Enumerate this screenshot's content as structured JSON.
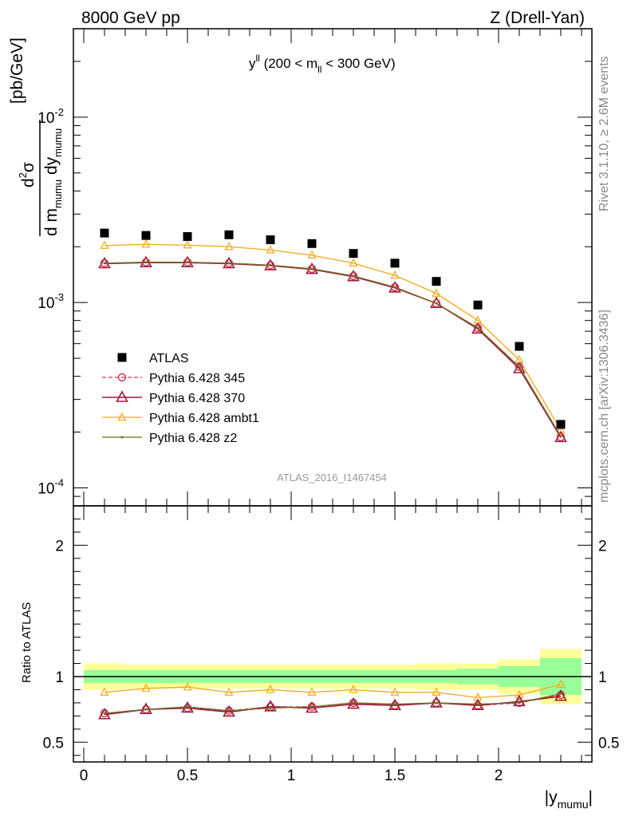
{
  "header": {
    "left": "8000 GeV pp",
    "right": "Z (Drell-Yan)"
  },
  "side_labels": {
    "rivet": "Rivet 3.1.10, ≥ 2.6M events",
    "mcplots": "mcplots.cern.ch [arXiv:1306.3436]"
  },
  "colors": {
    "atlas": "#000000",
    "p345": "#d03050",
    "p370": "#a01838",
    "ambt1": "#f0a818",
    "z2": "#6b7020",
    "band_inner": "#99ff99",
    "band_outer": "#ffff99"
  },
  "chart_data": [
    {
      "type": "line",
      "panel": "main",
      "title": "y^ll (200 < m_ll < 300 GeV)",
      "title_parts": {
        "main": "y",
        "sup": "ll",
        "pre": " (200 < m",
        "sub": "ll",
        "post": " < 300 GeV)"
      },
      "ylabel": "d²σ / d m_mumu dy_mumu [pb/GeV]",
      "ylabel_parts": {
        "num_d": "d",
        "num_sup": "2",
        "num_sigma": "σ",
        "den_d1": "d m",
        "den_sub1": "mumu",
        "den_d2": " dy",
        "den_sub2": "mumu",
        "unit": "[pb/GeV]"
      },
      "yscale": "log",
      "ylim": [
        8e-05,
        0.03
      ],
      "xlim": [
        -0.05,
        2.45
      ],
      "y_ticks": [
        {
          "base": "10",
          "exp": "-4",
          "value": 0.0001
        },
        {
          "base": "10",
          "exp": "-3",
          "value": 0.001
        },
        {
          "base": "10",
          "exp": "-2",
          "value": 0.01
        }
      ],
      "watermark": "ATLAS_2016_I1467454",
      "legend_position": "bottom-left",
      "x": [
        0.1,
        0.3,
        0.5,
        0.7,
        0.9,
        1.1,
        1.3,
        1.5,
        1.7,
        1.9,
        2.1,
        2.3
      ],
      "series": [
        {
          "name": "ATLAS",
          "marker": "square",
          "values": [
            0.00237,
            0.0023,
            0.00227,
            0.00232,
            0.00218,
            0.00208,
            0.00184,
            0.00163,
            0.0013,
            0.00097,
            0.00058,
            0.00022
          ]
        },
        {
          "name": "Pythia 6.428 345",
          "marker": "circle",
          "dash": true,
          "values": [
            0.00163,
            0.00165,
            0.00165,
            0.00163,
            0.00159,
            0.00152,
            0.00139,
            0.00121,
            0.00099,
            0.00073,
            0.00045,
            0.000188
          ]
        },
        {
          "name": "Pythia 6.428 370",
          "marker": "triangle-large",
          "values": [
            0.00162,
            0.00164,
            0.00164,
            0.00162,
            0.00158,
            0.00151,
            0.00138,
            0.0012,
            0.00099,
            0.00072,
            0.00044,
            0.000187
          ]
        },
        {
          "name": "Pythia 6.428 ambt1",
          "marker": "triangle",
          "values": [
            0.00203,
            0.00206,
            0.00204,
            0.002,
            0.00192,
            0.0018,
            0.00163,
            0.0014,
            0.00112,
            0.0008,
            0.00049,
            0.000205
          ]
        },
        {
          "name": "Pythia 6.428 z2",
          "marker": "dot",
          "values": [
            0.00163,
            0.00165,
            0.00165,
            0.00163,
            0.00159,
            0.00152,
            0.00139,
            0.00121,
            0.00099,
            0.00073,
            0.00045,
            0.00019
          ]
        }
      ]
    },
    {
      "type": "line",
      "panel": "ratio",
      "ylabel": "Ratio to ATLAS",
      "xlabel": "|y_mumu|",
      "xlabel_parts": {
        "pre": "|y",
        "sub": "mumu",
        "post": "|"
      },
      "ylim": [
        0.35,
        2.3
      ],
      "xlim": [
        -0.05,
        2.45
      ],
      "y_ticks": [
        "0.5",
        "1",
        "2"
      ],
      "x_ticks": [
        "0",
        "0.5",
        "1",
        "1.5",
        "2"
      ],
      "x": [
        0.1,
        0.3,
        0.5,
        0.7,
        0.9,
        1.1,
        1.3,
        1.5,
        1.7,
        1.9,
        2.1,
        2.3
      ],
      "band_edges": [
        0.0,
        0.2,
        0.4,
        0.6,
        0.8,
        1.0,
        1.2,
        1.4,
        1.6,
        1.8,
        2.0,
        2.2,
        2.4
      ],
      "band_inner": [
        0.05,
        0.05,
        0.05,
        0.05,
        0.05,
        0.05,
        0.05,
        0.05,
        0.05,
        0.06,
        0.08,
        0.14
      ],
      "band_outer": [
        0.1,
        0.09,
        0.09,
        0.09,
        0.09,
        0.09,
        0.09,
        0.09,
        0.1,
        0.1,
        0.13,
        0.21
      ],
      "series": [
        {
          "name": "Pythia 6.428 345",
          "values": [
            0.72,
            0.75,
            0.76,
            0.74,
            0.77,
            0.77,
            0.8,
            0.78,
            0.8,
            0.78,
            0.8,
            0.86
          ]
        },
        {
          "name": "Pythia 6.428 370",
          "values": [
            0.71,
            0.75,
            0.76,
            0.73,
            0.77,
            0.76,
            0.79,
            0.78,
            0.8,
            0.78,
            0.81,
            0.85
          ]
        },
        {
          "name": "Pythia 6.428 ambt1",
          "values": [
            0.88,
            0.91,
            0.92,
            0.88,
            0.9,
            0.88,
            0.9,
            0.88,
            0.88,
            0.84,
            0.86,
            0.94
          ]
        },
        {
          "name": "Pythia 6.428 z2",
          "values": [
            0.72,
            0.75,
            0.77,
            0.74,
            0.76,
            0.77,
            0.8,
            0.79,
            0.8,
            0.79,
            0.8,
            0.87
          ]
        }
      ]
    }
  ]
}
